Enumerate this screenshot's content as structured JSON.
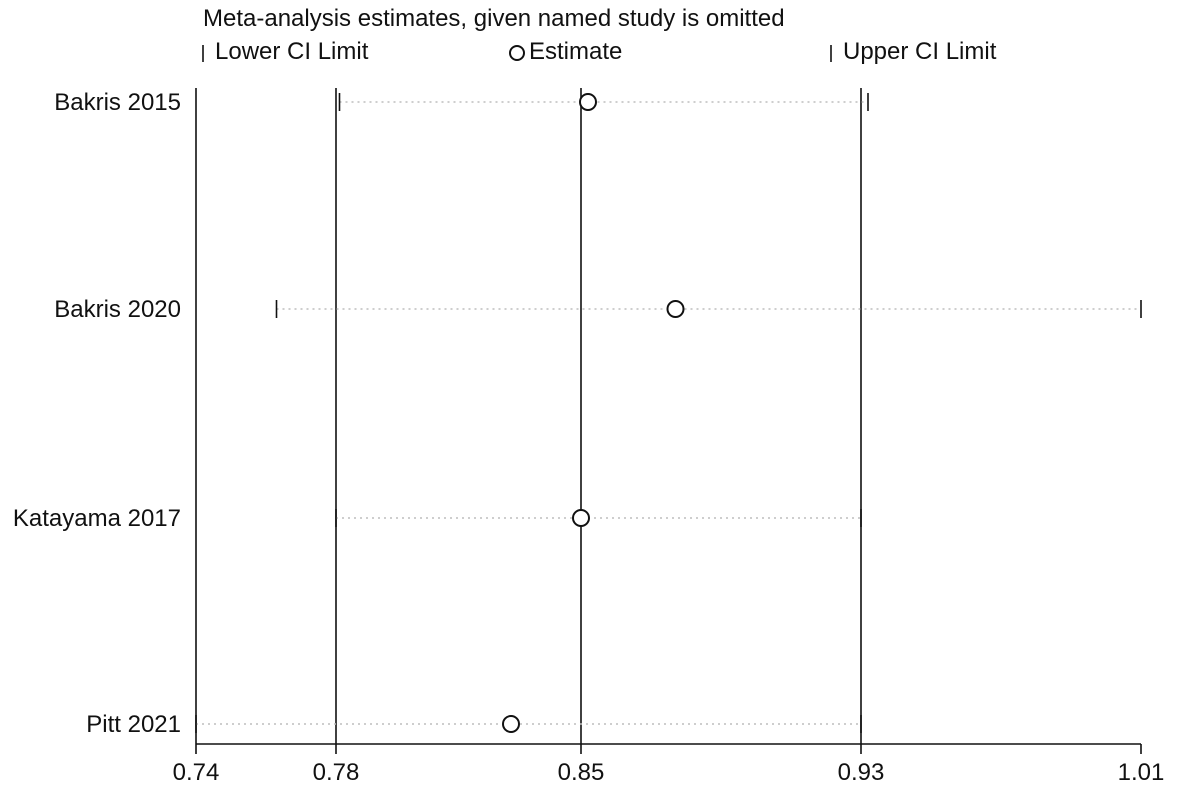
{
  "chart_data": {
    "type": "scatter",
    "title": "Meta-analysis estimates, given named study is omitted",
    "legend": [
      {
        "key": "lower",
        "label": "Lower CI Limit",
        "marker": "tick"
      },
      {
        "key": "estimate",
        "label": "Estimate",
        "marker": "circle"
      },
      {
        "key": "upper",
        "label": "Upper CI Limit",
        "marker": "tick"
      }
    ],
    "legend_placement": "top",
    "studies": [
      {
        "label": "Bakris 2015",
        "lower": 0.781,
        "estimate": 0.852,
        "upper": 0.932
      },
      {
        "label": "Bakris 2020",
        "lower": 0.763,
        "estimate": 0.877,
        "upper": 1.01
      },
      {
        "label": "Katayama 2017",
        "lower": 0.78,
        "estimate": 0.85,
        "upper": 0.93
      },
      {
        "label": "Pitt 2021",
        "lower": 0.74,
        "estimate": 0.83,
        "upper": 0.93
      }
    ],
    "reference_lines": [
      0.74,
      0.78,
      0.85,
      0.93
    ],
    "xlim": [
      0.74,
      1.01
    ],
    "x_ticks": [
      {
        "value": 0.74,
        "label": "0.74"
      },
      {
        "value": 0.78,
        "label": "0.78"
      },
      {
        "value": 0.85,
        "label": "0.85"
      },
      {
        "value": 0.93,
        "label": "0.93"
      },
      {
        "value": 1.01,
        "label": "1.01"
      }
    ],
    "grid": false,
    "xlabel": "",
    "ylabel": ""
  },
  "colors": {
    "line": "#111111",
    "dotted": "#bdbdbd",
    "background": "#ffffff"
  }
}
